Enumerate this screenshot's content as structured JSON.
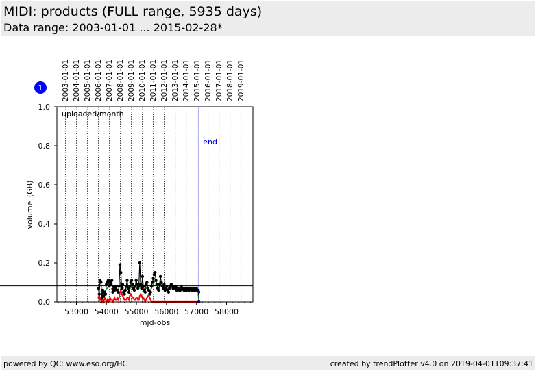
{
  "header": {
    "title": "MIDI: products (FULL range, 5935 days)",
    "subtitle": "Data range: 2003-01-01 ... 2015-02-28*"
  },
  "footer": {
    "left": "powered by QC: www.eso.org/HC",
    "right": "created by trendPlotter v4.0 on 2019-04-01T09:37:41"
  },
  "badge": {
    "number": "1",
    "color": "#0000ff"
  },
  "colors": {
    "points": "#000000",
    "green_series": "#008000",
    "red_series": "#ff0000",
    "end_line": "#0000cc",
    "reference_line": "#000000"
  },
  "chart_data": {
    "type": "scatter",
    "title": "",
    "annotation": "uploaded/month",
    "end_label": "end",
    "xlabel": "mjd-obs",
    "ylabel": "volume_(GB)",
    "xlim": [
      52350,
      58880
    ],
    "ylim": [
      0,
      1.0
    ],
    "x_ticks": [
      53000,
      54000,
      55000,
      56000,
      57000,
      58000
    ],
    "x_tick_labels": [
      "53000",
      "54000",
      "55000",
      "56000",
      "57000",
      "58000"
    ],
    "y_ticks": [
      0.0,
      0.2,
      0.4,
      0.6,
      0.8,
      1.0
    ],
    "y_tick_labels": [
      "0.0",
      "0.2",
      "0.4",
      "0.6",
      "0.8",
      "1.0"
    ],
    "date_lines": [
      {
        "mjd": 52640,
        "label": "2003-01-01"
      },
      {
        "mjd": 53005,
        "label": "2004-01-01"
      },
      {
        "mjd": 53371,
        "label": "2005-01-01"
      },
      {
        "mjd": 53736,
        "label": "2006-01-01"
      },
      {
        "mjd": 54101,
        "label": "2007-01-01"
      },
      {
        "mjd": 54466,
        "label": "2008-01-01"
      },
      {
        "mjd": 54832,
        "label": "2009-01-01"
      },
      {
        "mjd": 55197,
        "label": "2010-01-01"
      },
      {
        "mjd": 55562,
        "label": "2011-01-01"
      },
      {
        "mjd": 55927,
        "label": "2012-01-01"
      },
      {
        "mjd": 56293,
        "label": "2013-01-01"
      },
      {
        "mjd": 56658,
        "label": "2014-01-01"
      },
      {
        "mjd": 57023,
        "label": "2015-01-01"
      },
      {
        "mjd": 57388,
        "label": "2016-01-01"
      },
      {
        "mjd": 57754,
        "label": "2017-01-01"
      },
      {
        "mjd": 58119,
        "label": "2018-01-01"
      },
      {
        "mjd": 58484,
        "label": "2019-01-01"
      }
    ],
    "end_mjd": 57081,
    "reference_level": 0.082,
    "series": [
      {
        "x": [
          53730,
          53760,
          53790,
          53820,
          53850,
          53880,
          53910,
          53940,
          53970,
          54000,
          54030,
          54060,
          54090,
          54120,
          54150,
          54180,
          54210,
          54240,
          54270,
          54300,
          54330,
          54360,
          54390,
          54420,
          54450,
          54480,
          54510,
          54540,
          54570,
          54600,
          54630,
          54660,
          54690,
          54720,
          54750,
          54780,
          54810,
          54840,
          54870,
          54900,
          54930,
          54960,
          54990,
          55020,
          55050,
          55080,
          55110,
          55140,
          55170,
          55200,
          55230,
          55260,
          55290,
          55320,
          55350,
          55380,
          55410,
          55440,
          55470,
          55500,
          55530,
          55560,
          55590,
          55620,
          55650,
          55680,
          55710,
          55740,
          55770,
          55800,
          55830,
          55860,
          55890,
          55920,
          55950,
          55980,
          56010,
          56040,
          56070,
          56100,
          56130,
          56160,
          56190,
          56220,
          56250,
          56280,
          56310,
          56340,
          56370,
          56400,
          56430,
          56460,
          56490,
          56520,
          56550,
          56580,
          56610,
          56640,
          56670,
          56700,
          56730,
          56760,
          56790,
          56820,
          56850,
          56880,
          56910,
          56940,
          56970,
          57000,
          57030,
          57060,
          57080
        ],
        "y": [
          0.07,
          0.04,
          0.11,
          0.1,
          0.02,
          0.06,
          0.03,
          0.05,
          0.04,
          0.09,
          0.1,
          0.11,
          0.08,
          0.1,
          0.09,
          0.11,
          0.05,
          0.08,
          0.06,
          0.07,
          0.08,
          0.06,
          0.05,
          0.08,
          0.19,
          0.15,
          0.07,
          0.09,
          0.05,
          0.04,
          0.06,
          0.08,
          0.11,
          0.07,
          0.05,
          0.08,
          0.1,
          0.11,
          0.09,
          0.07,
          0.06,
          0.08,
          0.11,
          0.09,
          0.07,
          0.08,
          0.2,
          0.09,
          0.07,
          0.13,
          0.08,
          0.06,
          0.05,
          0.09,
          0.1,
          0.07,
          0.06,
          0.04,
          0.05,
          0.08,
          0.1,
          0.12,
          0.14,
          0.15,
          0.11,
          0.09,
          0.07,
          0.06,
          0.09,
          0.13,
          0.1,
          0.08,
          0.07,
          0.09,
          0.06,
          0.07,
          0.08,
          0.06,
          0.05,
          0.07,
          0.08,
          0.09,
          0.08,
          0.07,
          0.08,
          0.07,
          0.08,
          0.06,
          0.07,
          0.07,
          0.06,
          0.06,
          0.08,
          0.07,
          0.07,
          0.06,
          0.06,
          0.07,
          0.06,
          0.07,
          0.06,
          0.06,
          0.07,
          0.07,
          0.06,
          0.06,
          0.07,
          0.06,
          0.06,
          0.07,
          0.06,
          0.06,
          0.0
        ]
      },
      {
        "x": [
          53730,
          53790,
          53850,
          53910,
          53970,
          54030,
          54090,
          54150,
          54210,
          54270,
          54330,
          54390,
          54450,
          54510,
          54570,
          54630,
          54690,
          54750,
          54810,
          54870,
          54930,
          54990,
          55050,
          55110,
          55170,
          55230,
          55290,
          55350,
          55410,
          55470,
          55530,
          55590,
          55650,
          55710,
          55770,
          55830,
          55890,
          55950,
          56010,
          56070,
          56130,
          56190,
          56250,
          56310,
          56370,
          56430,
          56490,
          56550,
          56610,
          56670,
          56730,
          56790,
          56850,
          56910,
          56970,
          57030,
          57080
        ],
        "y": [
          0.05,
          0.06,
          0.05,
          0.04,
          0.06,
          0.07,
          0.08,
          0.07,
          0.06,
          0.06,
          0.06,
          0.06,
          0.09,
          0.1,
          0.07,
          0.06,
          0.07,
          0.07,
          0.07,
          0.08,
          0.06,
          0.07,
          0.07,
          0.08,
          0.08,
          0.09,
          0.07,
          0.07,
          0.06,
          0.05,
          0.08,
          0.1,
          0.11,
          0.08,
          0.07,
          0.08,
          0.07,
          0.07,
          0.06,
          0.06,
          0.07,
          0.07,
          0.07,
          0.07,
          0.07,
          0.07,
          0.07,
          0.07,
          0.07,
          0.07,
          0.07,
          0.07,
          0.07,
          0.07,
          0.07,
          0.07,
          0.0
        ]
      },
      {
        "x": [
          53730,
          53760,
          53790,
          53820,
          53850,
          53880,
          53910,
          53940,
          53970,
          54000,
          54030,
          54060,
          54090,
          54120,
          54150,
          54180,
          54210,
          54240,
          54270,
          54300,
          54330,
          54360,
          54390,
          54420,
          54450,
          54480,
          54510,
          54540,
          54570,
          54600,
          54630,
          54660,
          54690,
          54720,
          54750,
          54780,
          54810,
          54840,
          54870,
          54900,
          54930,
          54960,
          54990,
          55020,
          55050,
          55080,
          55110,
          55140,
          55170,
          55200,
          55230,
          55260,
          55290,
          55320,
          55350,
          55380,
          55410,
          55440,
          55470,
          55500,
          55530,
          55560,
          55590,
          55620,
          55650,
          55680,
          55710,
          55740,
          55770,
          55800,
          55830,
          55860,
          55890,
          55920,
          55950,
          55980,
          56010,
          56040,
          56070,
          56100,
          56130,
          56160,
          56190,
          56220,
          56250,
          56280,
          56310,
          56340,
          56370,
          56400,
          56430,
          56460,
          56490,
          56520,
          56550,
          56580,
          56610,
          56640,
          56670,
          56700,
          56730,
          56760,
          56790,
          56820,
          56850,
          56880,
          56910,
          56940,
          56970,
          57000,
          57030,
          57060,
          57080
        ],
        "y": [
          0.02,
          0.03,
          0.01,
          0.02,
          0.0,
          0.01,
          0.0,
          0.02,
          0.01,
          0.0,
          0.01,
          0.0,
          0.01,
          0.02,
          0.01,
          0.01,
          0.0,
          0.01,
          0.02,
          0.01,
          0.01,
          0.02,
          0.01,
          0.02,
          0.05,
          0.06,
          0.04,
          0.03,
          0.02,
          0.01,
          0.01,
          0.01,
          0.02,
          0.02,
          0.01,
          0.03,
          0.04,
          0.03,
          0.02,
          0.02,
          0.01,
          0.01,
          0.02,
          0.02,
          0.01,
          0.01,
          0.03,
          0.04,
          0.03,
          0.02,
          0.02,
          0.01,
          0.0,
          0.01,
          0.02,
          0.03,
          0.03,
          0.02,
          0.01,
          0.0,
          0.0,
          0.0,
          0.0,
          0.0,
          0.0,
          0.0,
          0.0,
          0.0,
          0.0,
          0.0,
          0.0,
          0.0,
          0.0,
          0.0,
          0.0,
          0.0,
          0.0,
          0.0,
          0.0,
          0.0,
          0.0,
          0.0,
          0.0,
          0.0,
          0.0,
          0.0,
          0.0,
          0.0,
          0.0,
          0.0,
          0.0,
          0.0,
          0.0,
          0.0,
          0.0,
          0.0,
          0.0,
          0.0,
          0.0,
          0.0,
          0.0,
          0.0,
          0.0,
          0.0,
          0.0,
          0.0,
          0.0,
          0.0,
          0.0,
          0.0,
          0.0,
          0.0,
          0.0
        ]
      }
    ]
  }
}
